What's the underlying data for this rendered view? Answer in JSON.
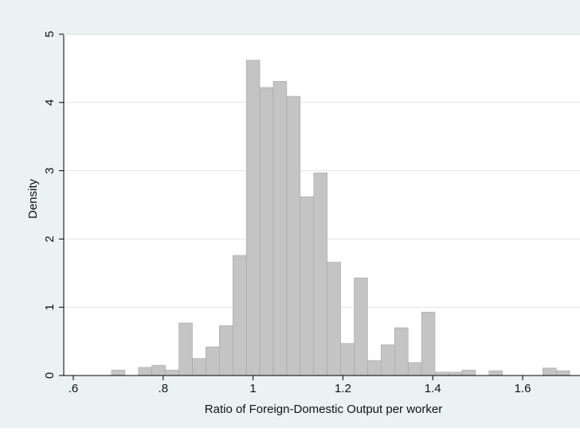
{
  "chart_data": {
    "type": "bar",
    "title": "",
    "xlabel": "Ratio of Foreign-Domestic Output per worker",
    "ylabel": "Density",
    "xlim": [
      0.58,
      1.7
    ],
    "ylim": [
      0,
      5
    ],
    "grid": true,
    "xticks": [
      {
        "value": 0.6,
        "label": ".6"
      },
      {
        "value": 0.8,
        "label": ".8"
      },
      {
        "value": 1.0,
        "label": "1"
      },
      {
        "value": 1.2,
        "label": "1.2"
      },
      {
        "value": 1.4,
        "label": "1.4"
      },
      {
        "value": 1.6,
        "label": "1.6"
      }
    ],
    "yticks": [
      {
        "value": 0,
        "label": "0"
      },
      {
        "value": 1,
        "label": "1"
      },
      {
        "value": 2,
        "label": "2"
      },
      {
        "value": 3,
        "label": "3"
      },
      {
        "value": 4,
        "label": "4"
      },
      {
        "value": 5,
        "label": "5"
      }
    ],
    "bin_width": 0.03,
    "bins": [
      {
        "start": 0.685,
        "value": 0.08
      },
      {
        "start": 0.745,
        "value": 0.12
      },
      {
        "start": 0.775,
        "value": 0.15
      },
      {
        "start": 0.805,
        "value": 0.08
      },
      {
        "start": 0.835,
        "value": 0.77
      },
      {
        "start": 0.865,
        "value": 0.25
      },
      {
        "start": 0.895,
        "value": 0.42
      },
      {
        "start": 0.925,
        "value": 0.73
      },
      {
        "start": 0.955,
        "value": 1.76
      },
      {
        "start": 0.985,
        "value": 4.62
      },
      {
        "start": 1.015,
        "value": 4.22
      },
      {
        "start": 1.045,
        "value": 4.31
      },
      {
        "start": 1.075,
        "value": 4.09
      },
      {
        "start": 1.105,
        "value": 2.62
      },
      {
        "start": 1.135,
        "value": 2.97
      },
      {
        "start": 1.165,
        "value": 1.66
      },
      {
        "start": 1.195,
        "value": 0.47
      },
      {
        "start": 1.225,
        "value": 1.43
      },
      {
        "start": 1.255,
        "value": 0.22
      },
      {
        "start": 1.285,
        "value": 0.45
      },
      {
        "start": 1.315,
        "value": 0.7
      },
      {
        "start": 1.345,
        "value": 0.19
      },
      {
        "start": 1.375,
        "value": 0.93
      },
      {
        "start": 1.405,
        "value": 0.05
      },
      {
        "start": 1.435,
        "value": 0.05
      },
      {
        "start": 1.465,
        "value": 0.08
      },
      {
        "start": 1.525,
        "value": 0.07
      },
      {
        "start": 1.645,
        "value": 0.11
      },
      {
        "start": 1.675,
        "value": 0.07
      }
    ],
    "colors": {
      "bar": "#c4c4c4",
      "bar_edge": "#9e9e9e",
      "plot_bg": "#ffffff",
      "outer_bg": "#eaf2f3",
      "grid": "#e3e3e3"
    }
  }
}
